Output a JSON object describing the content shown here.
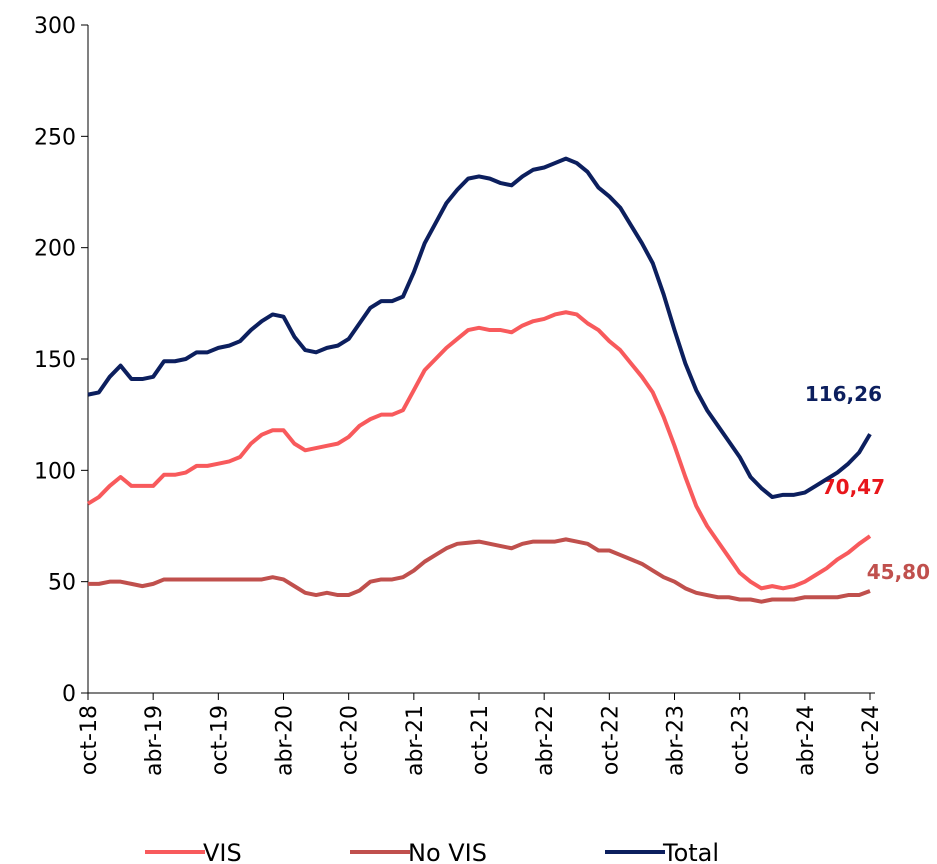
{
  "chart_data": {
    "type": "line",
    "categories": [
      "oct-18",
      null,
      null,
      null,
      null,
      null,
      "abr-19",
      null,
      null,
      null,
      null,
      null,
      "oct-19",
      null,
      null,
      null,
      null,
      null,
      "abr-20",
      null,
      null,
      null,
      null,
      null,
      "oct-20",
      null,
      null,
      null,
      null,
      null,
      "abr-21",
      null,
      null,
      null,
      null,
      null,
      "oct-21",
      null,
      null,
      null,
      null,
      null,
      "abr-22",
      null,
      null,
      null,
      null,
      null,
      "oct-22",
      null,
      null,
      null,
      null,
      null,
      "abr-23",
      null,
      null,
      null,
      null,
      null,
      "oct-23",
      null,
      null,
      null,
      null,
      null,
      "abr-24",
      null,
      null,
      null,
      null,
      null,
      "oct-24"
    ],
    "series": [
      {
        "name": "VIS",
        "color": "#f85a5c",
        "values": [
          85,
          88,
          93,
          97,
          93,
          93,
          93,
          98,
          98,
          99,
          102,
          102,
          103,
          104,
          106,
          112,
          116,
          118,
          118,
          112,
          109,
          110,
          111,
          112,
          115,
          120,
          123,
          125,
          125,
          127,
          136,
          145,
          150,
          155,
          159,
          163,
          164,
          163,
          163,
          162,
          165,
          167,
          168,
          170,
          171,
          170,
          166,
          163,
          158,
          154,
          148,
          142,
          135,
          124,
          111,
          97,
          84,
          75,
          68,
          61,
          54,
          50,
          47,
          48,
          47,
          48,
          50,
          53,
          56,
          60,
          63,
          67,
          70.47
        ],
        "value_labels": [
          null,
          null,
          null,
          null,
          null,
          null,
          null,
          null,
          null,
          null,
          null,
          null,
          null,
          null,
          null,
          null,
          null,
          null,
          null,
          null,
          null,
          null,
          null,
          null,
          null,
          null,
          null,
          null,
          null,
          null,
          null,
          null,
          null,
          null,
          null,
          null,
          null,
          null,
          null,
          null,
          null,
          null,
          null,
          null,
          null,
          null,
          null,
          null,
          null,
          null,
          null,
          null,
          null,
          null,
          null,
          null,
          null,
          null,
          null,
          null,
          null,
          null,
          null,
          null,
          null,
          null,
          null,
          null,
          null,
          null,
          null,
          null,
          "70,47"
        ],
        "label_color": "#e8161b"
      },
      {
        "name": "No VIS",
        "color": "#c0504d",
        "values": [
          49,
          49,
          50,
          50,
          49,
          48,
          49,
          51,
          51,
          51,
          51,
          51,
          51,
          51,
          51,
          51,
          51,
          52,
          51,
          48,
          45,
          44,
          45,
          44,
          44,
          46,
          50,
          51,
          51,
          52,
          55,
          59,
          62,
          65,
          67,
          67.5,
          68,
          67,
          66,
          65,
          67,
          68,
          68,
          68,
          69,
          68,
          67,
          64,
          64,
          62,
          60,
          58,
          55,
          52,
          50,
          47,
          45,
          44,
          43,
          43,
          42,
          42,
          41,
          42,
          42,
          42,
          43,
          43,
          43,
          43,
          44,
          44,
          45.8
        ],
        "value_labels": [
          null,
          null,
          null,
          null,
          null,
          null,
          null,
          null,
          null,
          null,
          null,
          null,
          null,
          null,
          null,
          null,
          null,
          null,
          null,
          null,
          null,
          null,
          null,
          null,
          null,
          null,
          null,
          null,
          null,
          null,
          null,
          null,
          null,
          null,
          null,
          null,
          null,
          null,
          null,
          null,
          null,
          null,
          null,
          null,
          null,
          null,
          null,
          null,
          null,
          null,
          null,
          null,
          null,
          null,
          null,
          null,
          null,
          null,
          null,
          null,
          null,
          null,
          null,
          null,
          null,
          null,
          null,
          null,
          null,
          null,
          null,
          null,
          "45,80"
        ],
        "label_color": "#c0504d"
      },
      {
        "name": "Total",
        "color": "#0c1f5e",
        "values": [
          134,
          135,
          142,
          147,
          141,
          141,
          142,
          149,
          149,
          150,
          153,
          153,
          155,
          156,
          158,
          163,
          167,
          170,
          169,
          160,
          154,
          153,
          155,
          156,
          159,
          166,
          173,
          176,
          176,
          178,
          189,
          202,
          211,
          220,
          226,
          231,
          232,
          231,
          229,
          228,
          232,
          235,
          236,
          238,
          240,
          238,
          234,
          227,
          223,
          218,
          210,
          202,
          193,
          179,
          163,
          148,
          136,
          127,
          120,
          113,
          106,
          97,
          92,
          88,
          89,
          89,
          90,
          93,
          96,
          99,
          103,
          108,
          116.26
        ],
        "value_labels": [
          null,
          null,
          null,
          null,
          null,
          null,
          null,
          null,
          null,
          null,
          null,
          null,
          null,
          null,
          null,
          null,
          null,
          null,
          null,
          null,
          null,
          null,
          null,
          null,
          null,
          null,
          null,
          null,
          null,
          null,
          null,
          null,
          null,
          null,
          null,
          null,
          null,
          null,
          null,
          null,
          null,
          null,
          null,
          null,
          null,
          null,
          null,
          null,
          null,
          null,
          null,
          null,
          null,
          null,
          null,
          null,
          null,
          null,
          null,
          null,
          null,
          null,
          null,
          null,
          null,
          null,
          null,
          null,
          null,
          null,
          null,
          null,
          "116,26"
        ],
        "label_color": "#0c1f5e"
      }
    ],
    "ylim": [
      0,
      300
    ],
    "yticks": [
      0,
      50,
      100,
      150,
      200,
      250,
      300
    ],
    "grid": false,
    "legend": "bottom"
  }
}
